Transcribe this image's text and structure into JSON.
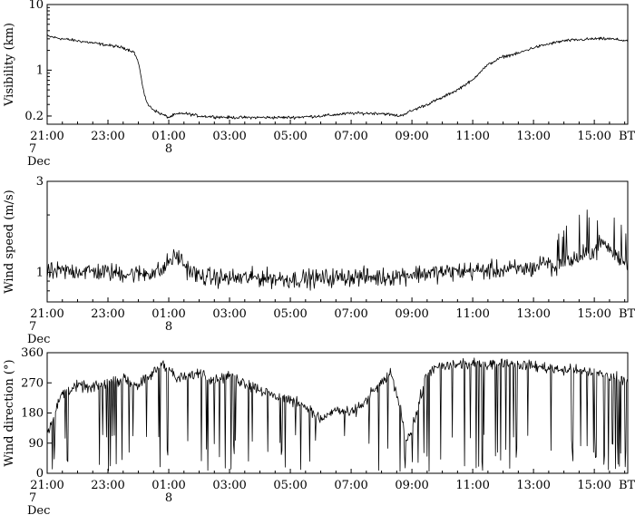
{
  "chart_data": [
    {
      "type": "line",
      "ylabel": "Visibility (km)",
      "yscale": "log",
      "ylim": [
        0.15,
        10
      ],
      "xlim": [
        0,
        19.1
      ],
      "x_ticks": [
        {
          "x": 0,
          "label": "21:00",
          "sub": [
            "7",
            "Dec"
          ]
        },
        {
          "x": 2,
          "label": "23:00",
          "sub": []
        },
        {
          "x": 4,
          "label": "01:00",
          "sub": [
            "8"
          ]
        },
        {
          "x": 6,
          "label": "03:00",
          "sub": []
        },
        {
          "x": 8,
          "label": "05:00",
          "sub": []
        },
        {
          "x": 10,
          "label": "07:00",
          "sub": []
        },
        {
          "x": 12,
          "label": "09:00",
          "sub": []
        },
        {
          "x": 14,
          "label": "11:00",
          "sub": []
        },
        {
          "x": 16,
          "label": "13:00",
          "sub": []
        },
        {
          "x": 18,
          "label": "15:00",
          "sub": []
        }
      ],
      "x_unit_label": "BT",
      "y_ticks": [
        {
          "v": 0.2,
          "label": "0.2"
        },
        {
          "v": 1,
          "label": "1"
        },
        {
          "v": 10,
          "label": "10"
        }
      ],
      "series": [
        {
          "noise": 0.045,
          "points": [
            [
              0,
              3.3
            ],
            [
              0.5,
              3.0
            ],
            [
              1.0,
              2.8
            ],
            [
              1.5,
              2.6
            ],
            [
              2.0,
              2.4
            ],
            [
              2.5,
              2.2
            ],
            [
              2.85,
              1.9
            ],
            [
              3.0,
              1.3
            ],
            [
              3.1,
              0.7
            ],
            [
              3.2,
              0.42
            ],
            [
              3.3,
              0.3
            ],
            [
              3.5,
              0.25
            ],
            [
              3.7,
              0.22
            ],
            [
              3.9,
              0.2
            ],
            [
              4.0,
              0.19
            ],
            [
              4.2,
              0.21
            ],
            [
              4.5,
              0.22
            ],
            [
              5.0,
              0.2
            ],
            [
              6.0,
              0.19
            ],
            [
              7.0,
              0.19
            ],
            [
              8.0,
              0.19
            ],
            [
              9.0,
              0.2
            ],
            [
              10.0,
              0.22
            ],
            [
              11.0,
              0.22
            ],
            [
              11.6,
              0.2
            ],
            [
              12.0,
              0.24
            ],
            [
              12.5,
              0.3
            ],
            [
              13.0,
              0.38
            ],
            [
              13.5,
              0.5
            ],
            [
              14.0,
              0.7
            ],
            [
              14.5,
              1.2
            ],
            [
              15.0,
              1.6
            ],
            [
              15.5,
              1.8
            ],
            [
              16.0,
              2.2
            ],
            [
              17.0,
              2.8
            ],
            [
              18.0,
              3.0
            ],
            [
              18.5,
              3.0
            ],
            [
              19.1,
              2.8
            ]
          ]
        }
      ]
    },
    {
      "type": "line",
      "ylabel": "Wind speed (m/s)",
      "yscale": "log",
      "ylim": [
        0.7,
        3
      ],
      "xlim": [
        0,
        19.1
      ],
      "x_ticks": [
        {
          "x": 0,
          "label": "21:00",
          "sub": [
            "7",
            "Dec"
          ]
        },
        {
          "x": 2,
          "label": "23:00",
          "sub": []
        },
        {
          "x": 4,
          "label": "01:00",
          "sub": [
            "8"
          ]
        },
        {
          "x": 6,
          "label": "03:00",
          "sub": []
        },
        {
          "x": 8,
          "label": "05:00",
          "sub": []
        },
        {
          "x": 10,
          "label": "07:00",
          "sub": []
        },
        {
          "x": 12,
          "label": "09:00",
          "sub": []
        },
        {
          "x": 14,
          "label": "11:00",
          "sub": []
        },
        {
          "x": 16,
          "label": "13:00",
          "sub": []
        },
        {
          "x": 18,
          "label": "15:00",
          "sub": []
        }
      ],
      "x_unit_label": "BT",
      "y_ticks": [
        {
          "v": 1,
          "label": "1"
        },
        {
          "v": 3,
          "label": "3"
        }
      ],
      "series": [
        {
          "noise": 0.06,
          "points": [
            [
              0,
              1.0
            ],
            [
              1,
              1.02
            ],
            [
              2,
              1.0
            ],
            [
              3,
              0.98
            ],
            [
              3.8,
              1.02
            ],
            [
              4.0,
              1.15
            ],
            [
              4.3,
              1.22
            ],
            [
              4.6,
              1.05
            ],
            [
              5,
              0.95
            ],
            [
              6,
              0.93
            ],
            [
              7,
              0.94
            ],
            [
              8,
              0.92
            ],
            [
              9,
              0.93
            ],
            [
              10,
              0.95
            ],
            [
              11,
              0.94
            ],
            [
              12,
              0.98
            ],
            [
              13,
              1.0
            ],
            [
              14,
              1.02
            ],
            [
              15,
              1.03
            ],
            [
              16,
              1.05
            ],
            [
              16.4,
              1.15
            ],
            [
              16.7,
              1.05
            ],
            [
              17,
              1.12
            ],
            [
              17.5,
              1.2
            ],
            [
              18,
              1.3
            ],
            [
              18.3,
              1.45
            ],
            [
              18.6,
              1.25
            ],
            [
              19.1,
              1.1
            ]
          ]
        }
      ]
    },
    {
      "type": "line",
      "ylabel": "Wind direction (°)",
      "yscale": "linear",
      "ylim": [
        0,
        360
      ],
      "xlim": [
        0,
        19.1
      ],
      "x_ticks": [
        {
          "x": 0,
          "label": "21:00",
          "sub": [
            "7",
            "Dec"
          ]
        },
        {
          "x": 2,
          "label": "23:00",
          "sub": []
        },
        {
          "x": 4,
          "label": "01:00",
          "sub": [
            "8"
          ]
        },
        {
          "x": 6,
          "label": "03:00",
          "sub": []
        },
        {
          "x": 8,
          "label": "05:00",
          "sub": []
        },
        {
          "x": 10,
          "label": "07:00",
          "sub": []
        },
        {
          "x": 12,
          "label": "09:00",
          "sub": []
        },
        {
          "x": 14,
          "label": "11:00",
          "sub": []
        },
        {
          "x": 16,
          "label": "13:00",
          "sub": []
        },
        {
          "x": 18,
          "label": "15:00",
          "sub": []
        }
      ],
      "x_unit_label": "BT",
      "y_ticks": [
        {
          "v": 0,
          "label": "0"
        },
        {
          "v": 90,
          "label": "90"
        },
        {
          "v": 180,
          "label": "180"
        },
        {
          "v": 270,
          "label": "270"
        },
        {
          "v": 360,
          "label": "360"
        }
      ],
      "series": [
        {
          "noise": 14,
          "points": [
            [
              0,
              120
            ],
            [
              0.5,
              240
            ],
            [
              1.0,
              260
            ],
            [
              1.5,
              255
            ],
            [
              2.0,
              270
            ],
            [
              2.5,
              280
            ],
            [
              3.0,
              265
            ],
            [
              3.5,
              300
            ],
            [
              3.8,
              330
            ],
            [
              4.0,
              310
            ],
            [
              4.3,
              280
            ],
            [
              5.0,
              300
            ],
            [
              5.5,
              280
            ],
            [
              6.0,
              290
            ],
            [
              6.5,
              270
            ],
            [
              7.0,
              250
            ],
            [
              7.5,
              230
            ],
            [
              8.0,
              220
            ],
            [
              8.5,
              200
            ],
            [
              9.0,
              160
            ],
            [
              9.5,
              190
            ],
            [
              10.0,
              180
            ],
            [
              10.3,
              200
            ],
            [
              10.7,
              240
            ],
            [
              11.0,
              270
            ],
            [
              11.3,
              300
            ],
            [
              11.6,
              200
            ],
            [
              11.8,
              100
            ],
            [
              12.0,
              130
            ],
            [
              12.5,
              300
            ],
            [
              13.0,
              320
            ],
            [
              14.0,
              325
            ],
            [
              15.0,
              330
            ],
            [
              16.0,
              320
            ],
            [
              17.0,
              310
            ],
            [
              18.0,
              300
            ],
            [
              18.5,
              290
            ],
            [
              19.1,
              280
            ]
          ]
        }
      ]
    }
  ]
}
